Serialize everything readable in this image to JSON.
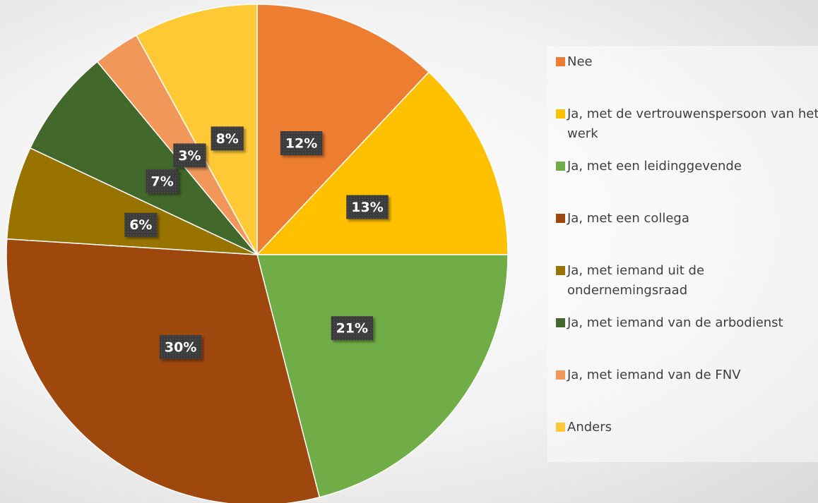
{
  "chart_data": {
    "type": "pie",
    "categories": [
      "Nee",
      "Ja, met de vertrouwenspersoon van het werk",
      "Ja, met een leidinggevende",
      "Ja, met een collega",
      "Ja, met iemand uit de ondernemingsraad",
      "Ja, met iemand van de arbodienst",
      "Ja, met iemand van de FNV",
      "Anders"
    ],
    "values": [
      12,
      13,
      21,
      30,
      6,
      7,
      3,
      8
    ],
    "value_labels": [
      "12%",
      "13%",
      "21%",
      "30%",
      "6%",
      "7%",
      "3%",
      "8%"
    ],
    "colors": [
      "#ED7D31",
      "#FFC000",
      "#70AD47",
      "#9E480E",
      "#997300",
      "#43682B",
      "#F1975A",
      "#FFC935"
    ],
    "legend": "right"
  }
}
